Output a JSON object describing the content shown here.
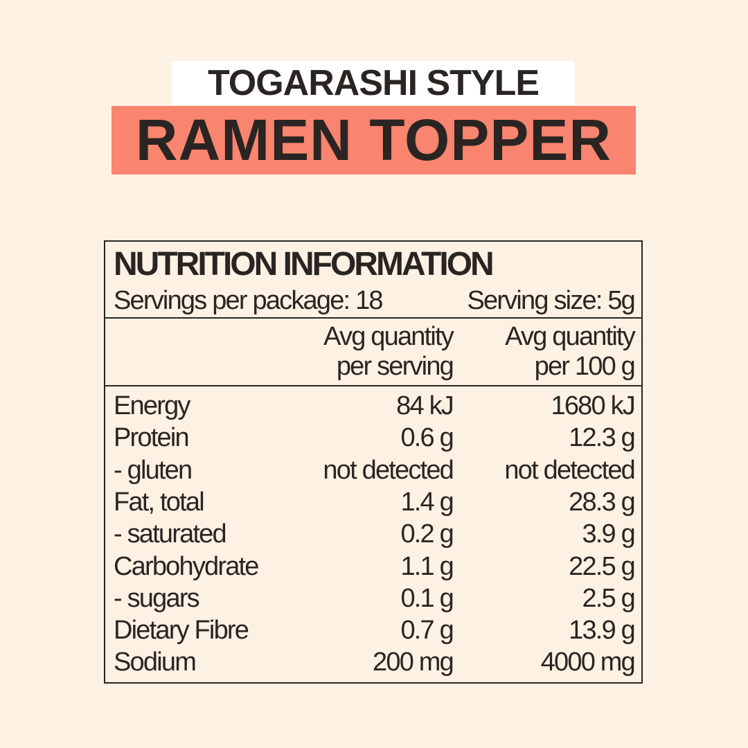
{
  "header": {
    "subtitle": "TOGARASHI STYLE",
    "title": "RAMEN TOPPER"
  },
  "colors": {
    "background": "#fdf1e4",
    "accent": "#f9846f",
    "text": "#2a2522"
  },
  "nutrition": {
    "title": "NUTRITION INFORMATION",
    "servings_per_package": "Servings per package: 18",
    "serving_size": "Serving size: 5g",
    "col1_line1": "Avg quantity",
    "col1_line2": "per serving",
    "col2_line1": "Avg quantity",
    "col2_line2": "per 100 g",
    "rows": [
      {
        "label": "Energy",
        "per_serving": "84 kJ",
        "per_100g": "1680 kJ"
      },
      {
        "label": "Protein",
        "per_serving": "0.6 g",
        "per_100g": "12.3 g"
      },
      {
        "label": "- gluten",
        "per_serving": "not detected",
        "per_100g": "not detected"
      },
      {
        "label": "Fat, total",
        "per_serving": "1.4 g",
        "per_100g": "28.3 g"
      },
      {
        "label": "- saturated",
        "per_serving": "0.2 g",
        "per_100g": "3.9 g"
      },
      {
        "label": "Carbohydrate",
        "per_serving": "1.1 g",
        "per_100g": "22.5 g"
      },
      {
        "label": "- sugars",
        "per_serving": "0.1 g",
        "per_100g": "2.5 g"
      },
      {
        "label": "Dietary Fibre",
        "per_serving": "0.7 g",
        "per_100g": "13.9 g"
      },
      {
        "label": "Sodium",
        "per_serving": "200 mg",
        "per_100g": "4000 mg"
      }
    ]
  }
}
